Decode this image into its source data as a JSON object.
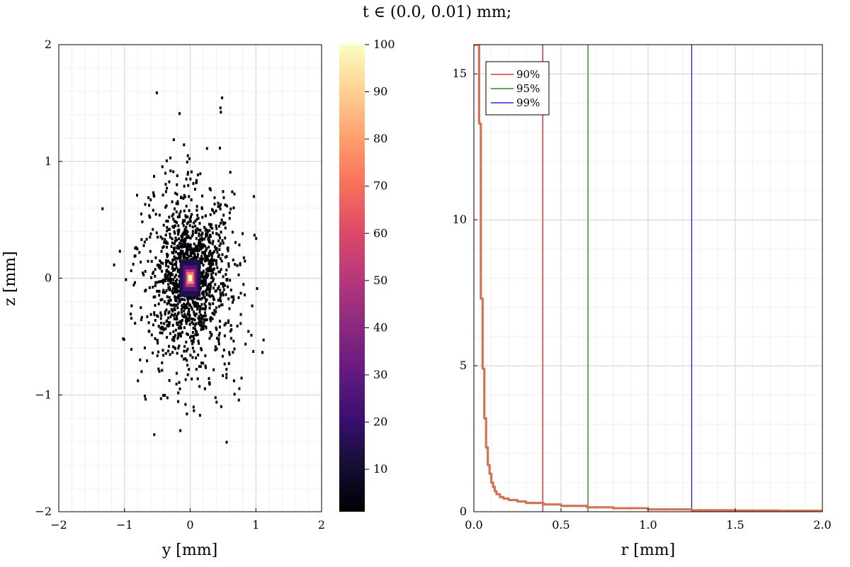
{
  "figure_title": "t ∈ (0.0, 0.01) mm;",
  "chart_data": [
    {
      "type": "heatmap",
      "xlabel": "y [mm]",
      "ylabel": "z [mm]",
      "xlim": [
        -2,
        2
      ],
      "ylim": [
        -2,
        2
      ],
      "xticks": [
        "−2",
        "−1",
        "0",
        "1",
        "2"
      ],
      "yticks": [
        "−2",
        "−1",
        "0",
        "1",
        "2"
      ],
      "grid": true,
      "colormap": "magma",
      "colorbar": {
        "range": [
          1,
          100
        ],
        "ticks": [
          "10",
          "20",
          "30",
          "40",
          "50",
          "60",
          "70",
          "80",
          "90",
          "100"
        ]
      },
      "distribution": {
        "center": [
          0,
          0
        ],
        "peak_value": 100,
        "core_radius_mm": 0.05,
        "spread_mm": 0.5,
        "outer_extent_mm": 1.9
      }
    },
    {
      "type": "line",
      "xlabel": "r [mm]",
      "ylabel": "",
      "xlim": [
        0,
        2
      ],
      "ylim": [
        0,
        16
      ],
      "xticks": [
        "0.0",
        "0.5",
        "1.0",
        "1.5",
        "2.0"
      ],
      "yticks": [
        "0",
        "5",
        "10",
        "15"
      ],
      "grid": true,
      "legend_position": "top-left",
      "series": [
        {
          "color": "#d47256",
          "x": [
            0.0,
            0.01,
            0.02,
            0.03,
            0.04,
            0.05,
            0.06,
            0.07,
            0.08,
            0.09,
            0.1,
            0.11,
            0.12,
            0.13,
            0.15,
            0.17,
            0.2,
            0.25,
            0.3,
            0.4,
            0.5,
            0.65,
            0.8,
            1.0,
            1.25,
            1.5,
            1.75,
            2.0
          ],
          "values": [
            16,
            16,
            16,
            13.3,
            7.3,
            4.9,
            3.2,
            2.2,
            1.6,
            1.3,
            1.0,
            0.85,
            0.7,
            0.6,
            0.5,
            0.45,
            0.4,
            0.35,
            0.3,
            0.25,
            0.2,
            0.15,
            0.12,
            0.08,
            0.05,
            0.04,
            0.03,
            0.02
          ]
        }
      ],
      "vlines": [
        {
          "label": "90%",
          "x": 0.395,
          "color": "#e03030"
        },
        {
          "label": "95%",
          "x": 0.655,
          "color": "#2a8a2a"
        },
        {
          "label": "99%",
          "x": 1.25,
          "color": "#2a2ae0"
        }
      ]
    }
  ]
}
